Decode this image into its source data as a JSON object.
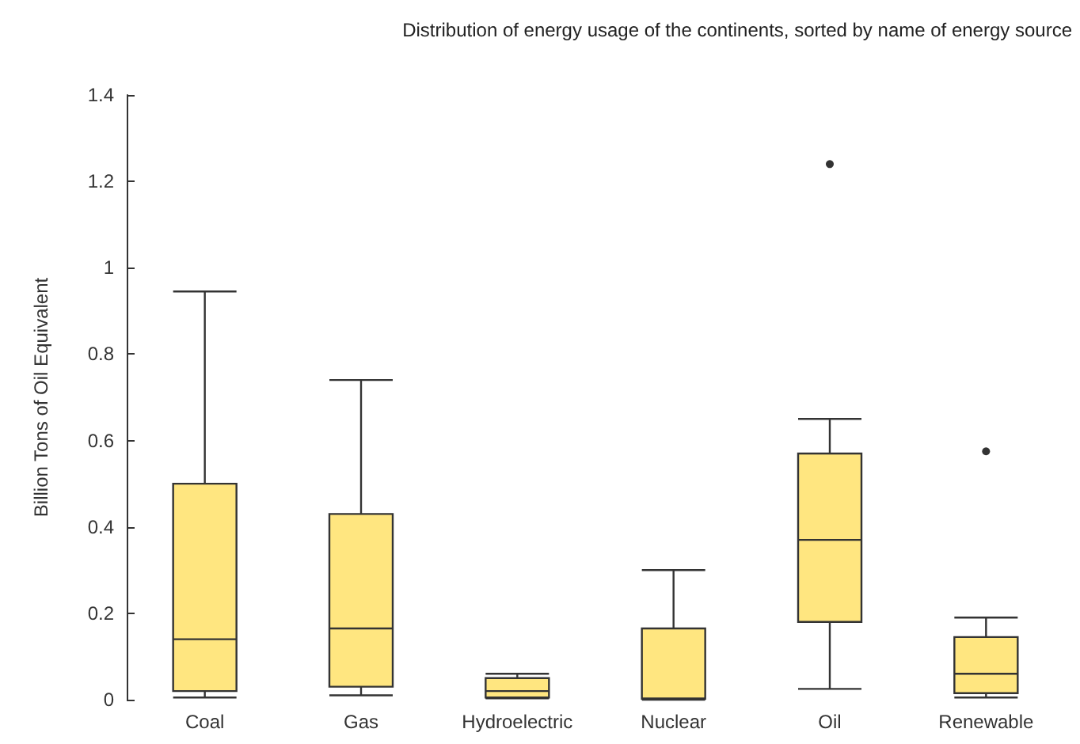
{
  "chart_data": {
    "type": "box",
    "title": "Distribution of energy usage of the continents, sorted by name of energy source",
    "ylabel": "Billion Tons of Oil Equivalent",
    "categories": [
      "Coal",
      "Gas",
      "Hydroelectric",
      "Nuclear",
      "Oil",
      "Renewable"
    ],
    "series": [
      {
        "color": "#ffe680",
        "boxes": [
          {
            "low": 0.005,
            "q1": 0.02,
            "median": 0.14,
            "q3": 0.5,
            "high": 0.945
          },
          {
            "low": 0.01,
            "q1": 0.03,
            "median": 0.165,
            "q3": 0.43,
            "high": 0.74
          },
          {
            "low": 0.003,
            "q1": 0.005,
            "median": 0.02,
            "q3": 0.05,
            "high": 0.06
          },
          {
            "low": 0,
            "q1": 0.002,
            "median": 0.003,
            "q3": 0.165,
            "high": 0.3
          },
          {
            "low": 0.025,
            "q1": 0.18,
            "median": 0.37,
            "q3": 0.57,
            "high": 0.65,
            "outliers": [
              1.24
            ]
          },
          {
            "low": 0.005,
            "q1": 0.015,
            "median": 0.06,
            "q3": 0.145,
            "high": 0.19,
            "outliers": [
              0.575
            ]
          }
        ]
      }
    ],
    "ylim": [
      0,
      1.4
    ],
    "yticks": [
      0,
      0.2,
      0.4,
      0.6,
      0.8,
      1,
      1.2,
      1.4
    ],
    "grid": false
  }
}
